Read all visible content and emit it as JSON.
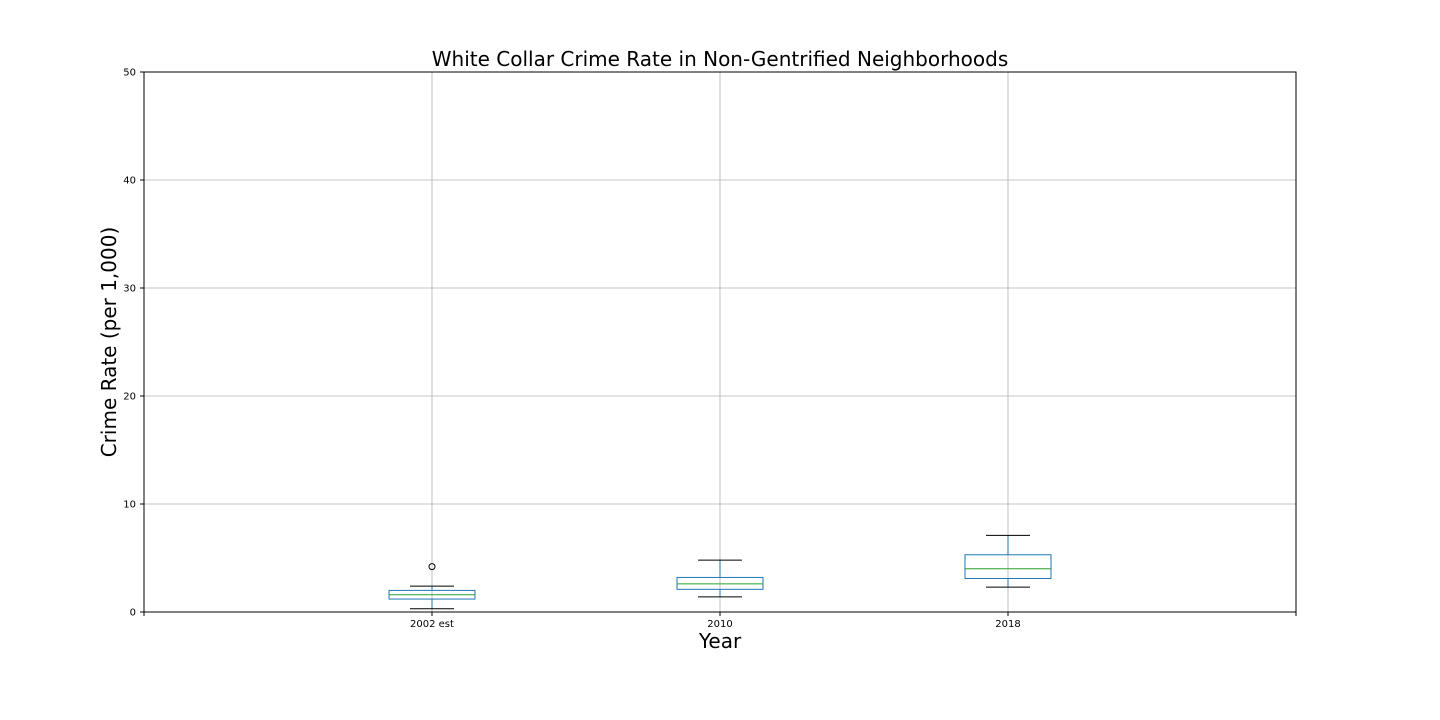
{
  "chart_data": {
    "type": "box",
    "title": "White Collar Crime Rate in Non-Gentrified Neighborhoods",
    "xlabel": "Year",
    "ylabel": "Crime Rate (per 1,000)",
    "categories": [
      "2002 est",
      "2010",
      "2018"
    ],
    "ylim": [
      0,
      50
    ],
    "yticks": [
      "0",
      "10",
      "20",
      "30",
      "40",
      "50"
    ],
    "grid": true,
    "boxes": [
      {
        "category": "2002 est",
        "whisker_low": 0.3,
        "q1": 1.2,
        "median": 1.6,
        "q3": 2.0,
        "whisker_high": 2.4,
        "outliers": [
          4.2
        ]
      },
      {
        "category": "2010",
        "whisker_low": 1.4,
        "q1": 2.1,
        "median": 2.6,
        "q3": 3.2,
        "whisker_high": 4.8,
        "outliers": []
      },
      {
        "category": "2018",
        "whisker_low": 2.3,
        "q1": 3.1,
        "median": 4.0,
        "q3": 5.3,
        "whisker_high": 7.1,
        "outliers": []
      }
    ],
    "colors": {
      "box": "#1f77b4",
      "median": "#2ca02c",
      "whisker_cap": "#000000",
      "grid": "#b0b0b0",
      "axis": "#000000"
    }
  }
}
